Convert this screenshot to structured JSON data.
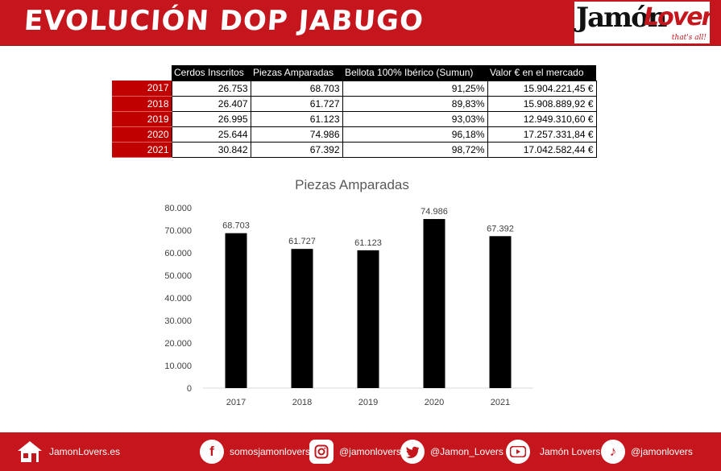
{
  "header": {
    "title": "EVOLUCIÓN DOP JABUGO",
    "logo_main": "Jamón",
    "logo_accent": "Lovers",
    "logo_tagline": "that's all!"
  },
  "table": {
    "columns": [
      "Cerdos Inscritos",
      "Piezas Amparadas",
      "Bellota 100% Ibérico (Sumun)",
      "Valor € en el mercado"
    ],
    "rows": [
      {
        "year": "2017",
        "cerdos": "26.753",
        "piezas": "68.703",
        "bellota": "91,25%",
        "valor": "15.904.221,45 €"
      },
      {
        "year": "2018",
        "cerdos": "26.407",
        "piezas": "61.727",
        "bellota": "89,83%",
        "valor": "15.908.889,92 €"
      },
      {
        "year": "2019",
        "cerdos": "26.995",
        "piezas": "61.123",
        "bellota": "93,03%",
        "valor": "12.949.310,60 €"
      },
      {
        "year": "2020",
        "cerdos": "25.644",
        "piezas": "74.986",
        "bellota": "96,18%",
        "valor": "17.257.331,84 €"
      },
      {
        "year": "2021",
        "cerdos": "30.842",
        "piezas": "67.392",
        "bellota": "98,72%",
        "valor": "17.042.582,44 €"
      }
    ]
  },
  "chart_data": {
    "type": "bar",
    "title": "Piezas Amparadas",
    "categories": [
      "2017",
      "2018",
      "2019",
      "2020",
      "2021"
    ],
    "values": [
      68703,
      61727,
      61123,
      74986,
      67392
    ],
    "data_labels": [
      "68.703",
      "61.727",
      "61.123",
      "74.986",
      "67.392"
    ],
    "ylim": [
      0,
      80000
    ],
    "yticks": [
      0,
      10000,
      20000,
      30000,
      40000,
      50000,
      60000,
      70000,
      80000
    ],
    "ytick_labels": [
      "0",
      "10.000",
      "20.000",
      "30.000",
      "40.000",
      "50.000",
      "60.000",
      "70.000",
      "80.000"
    ],
    "bar_color": "#000000",
    "grid": false
  },
  "footer": {
    "website": "JamonLovers.es",
    "facebook": "somosjamonlovers",
    "instagram": "@jamonlovers",
    "twitter": "@Jamon_Lovers",
    "youtube": "Jamón Lovers",
    "tiktok": "@jamonlovers"
  },
  "colors": {
    "brand_red": "#c4161c",
    "year_red": "#c00000"
  }
}
